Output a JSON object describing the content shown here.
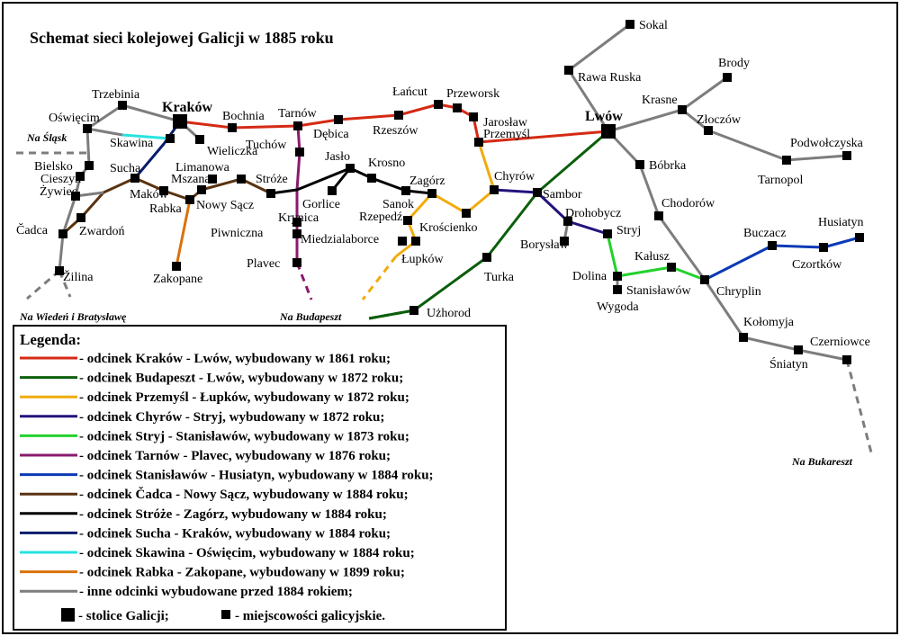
{
  "title": "Schemat sieci kolejowej Galicji w 1885 roku",
  "colors": {
    "krakow_lwow": "#d42a14",
    "budapeszt_lwow": "#0b5e0b",
    "przemysl_lupkow": "#f0ac0e",
    "chyrow_stryj": "#25137c",
    "stryj_stanislawow": "#22d12b",
    "tarnow_plavec": "#8a1a6c",
    "stanislawow_husiatyn": "#0b3ab5",
    "cadca_nowysacz": "#5a3310",
    "stroze_zagorz": "#000000",
    "sucha_krakow": "#081c6a",
    "skawina_oswiecim": "#27e3e0",
    "rabka_zakopane": "#d8720b",
    "other": "#7d7d7d"
  },
  "towns": [
    {
      "id": "krakow",
      "label": "Kraków",
      "capital": true
    },
    {
      "id": "lwow",
      "label": "Lwów",
      "capital": true
    },
    {
      "id": "sokal",
      "label": "Sokal"
    },
    {
      "id": "rawa",
      "label": "Rawa Ruska"
    },
    {
      "id": "brody",
      "label": "Brody"
    },
    {
      "id": "krasne",
      "label": "Krasne"
    },
    {
      "id": "zloczow",
      "label": "Złoczów"
    },
    {
      "id": "podwol",
      "label": "Podwołczyska"
    },
    {
      "id": "tarnopol",
      "label": "Tarnopol"
    },
    {
      "id": "bobrka",
      "label": "Bóbrka"
    },
    {
      "id": "chodorow",
      "label": "Chodorów"
    },
    {
      "id": "buczacz",
      "label": "Buczacz"
    },
    {
      "id": "husiatyn",
      "label": "Husiatyn"
    },
    {
      "id": "czortkow",
      "label": "Czortków"
    },
    {
      "id": "chryplin",
      "label": "Chryplin"
    },
    {
      "id": "kolomyja",
      "label": "Kołomyja"
    },
    {
      "id": "sniatyn",
      "label": "Śniatyn"
    },
    {
      "id": "czerniowce",
      "label": "Czerniowce"
    },
    {
      "id": "trzebinia",
      "label": "Trzebinia"
    },
    {
      "id": "oswiecim",
      "label": "Oświęcim"
    },
    {
      "id": "skawina",
      "label": "Skawina"
    },
    {
      "id": "bochnia",
      "label": "Bochnia"
    },
    {
      "id": "tarnow",
      "label": "Tarnów"
    },
    {
      "id": "debica",
      "label": "Dębica"
    },
    {
      "id": "rzeszow",
      "label": "Rzeszów"
    },
    {
      "id": "lancut",
      "label": "Łańcut"
    },
    {
      "id": "przeworsk",
      "label": "Przeworsk"
    },
    {
      "id": "jaroslaw",
      "label": "Jarosław"
    },
    {
      "id": "przemysl",
      "label": "Przemyśl"
    },
    {
      "id": "wieliczka",
      "label": "Wieliczka"
    },
    {
      "id": "tuchow",
      "label": "Tuchów"
    },
    {
      "id": "bielsko",
      "label": "Bielsko"
    },
    {
      "id": "cieszyn",
      "label": "Cieszyn"
    },
    {
      "id": "zywiec",
      "label": "Żywiec"
    },
    {
      "id": "sucha",
      "label": "Sucha"
    },
    {
      "id": "makow",
      "label": "Maków"
    },
    {
      "id": "limanowa",
      "label": "Limanowa"
    },
    {
      "id": "mszana",
      "label": "Mszana"
    },
    {
      "id": "rabka",
      "label": "Rabka"
    },
    {
      "id": "nowysacz",
      "label": "Nowy Sącz"
    },
    {
      "id": "stroze",
      "label": "Stróże"
    },
    {
      "id": "jaslo",
      "label": "Jasło"
    },
    {
      "id": "krosno",
      "label": "Krosno"
    },
    {
      "id": "gorlice",
      "label": "Gorlice"
    },
    {
      "id": "zagorz",
      "label": "Zagórz"
    },
    {
      "id": "sanok",
      "label": "Sanok"
    },
    {
      "id": "chyrow",
      "label": "Chyrów"
    },
    {
      "id": "sambor",
      "label": "Sambor"
    },
    {
      "id": "drohobycz",
      "label": "Drohobycz"
    },
    {
      "id": "stryj",
      "label": "Stryj"
    },
    {
      "id": "boryslaw",
      "label": "Borysław"
    },
    {
      "id": "kalusz",
      "label": "Kałusz"
    },
    {
      "id": "dolina",
      "label": "Dolina"
    },
    {
      "id": "stanislawow",
      "label": "Stanisławów"
    },
    {
      "id": "wygoda",
      "label": "Wygoda"
    },
    {
      "id": "rzepedz",
      "label": "Rzepedź"
    },
    {
      "id": "kroscienko",
      "label": "Krościenko"
    },
    {
      "id": "lupkow",
      "label": "Łupków"
    },
    {
      "id": "miedzilaborce",
      "label": "Miedzialaborce"
    },
    {
      "id": "krynica",
      "label": "Krynica"
    },
    {
      "id": "piwniczna",
      "label": "Piwniczna"
    },
    {
      "id": "plavec",
      "label": "Plavec"
    },
    {
      "id": "cadca",
      "label": "Čadca"
    },
    {
      "id": "zwardon",
      "label": "Zwardoń"
    },
    {
      "id": "zilina",
      "label": "Žilina"
    },
    {
      "id": "zakopane",
      "label": "Zakopane"
    },
    {
      "id": "turka",
      "label": "Turka"
    },
    {
      "id": "uzhorod",
      "label": "Użhorod"
    }
  ],
  "directions": [
    {
      "id": "slask",
      "label": "Na Śląsk"
    },
    {
      "id": "wieden",
      "label": "Na Wiedeń i Bratysławę"
    },
    {
      "id": "budapeszt",
      "label": "Na Budapeszt"
    },
    {
      "id": "bukareszt",
      "label": "Na Bukareszt"
    }
  ],
  "legend": {
    "title": "Legenda:",
    "entries": [
      {
        "color": "krakow_lwow",
        "text": "- odcinek Kraków - Lwów, wybudowany w 1861 roku;"
      },
      {
        "color": "budapeszt_lwow",
        "text": "- odcinek Budapeszt - Lwów, wybudowany w 1872 roku;"
      },
      {
        "color": "przemysl_lupkow",
        "text": "- odcinek Przemyśl - Łupków, wybudowany w 1872 roku;"
      },
      {
        "color": "chyrow_stryj",
        "text": "- odcinek Chyrów - Stryj, wybudowany w 1872 roku;"
      },
      {
        "color": "stryj_stanislawow",
        "text": "- odcinek Stryj - Stanisławów, wybudowany w 1873 roku;"
      },
      {
        "color": "tarnow_plavec",
        "text": "- odcinek Tarnów - Plavec, wybudowany w 1876 roku;"
      },
      {
        "color": "stanislawow_husiatyn",
        "text": "- odcinek Stanisławów - Husiatyn, wybudowany w 1884 roku;"
      },
      {
        "color": "cadca_nowysacz",
        "text": "- odcinek Čadca - Nowy Sącz, wybudowany w 1884 roku;"
      },
      {
        "color": "stroze_zagorz",
        "text": "- odcinek Stróże - Zagórz, wybudowany w 1884 roku;"
      },
      {
        "color": "sucha_krakow",
        "text": "- odcinek Sucha - Kraków, wybudowany w 1884 roku;"
      },
      {
        "color": "skawina_oswiecim",
        "text": "- odcinek Skawina - Oświęcim, wybudowany w 1884 roku;"
      },
      {
        "color": "rabka_zakopane",
        "text": "- odcinek Rabka - Zakopane, wybudowany w 1899 roku;"
      },
      {
        "color": "other",
        "text": "- inne odcinki wybudowane przed 1884 rokiem;"
      }
    ],
    "capital_text": "- stolice Galicji;",
    "town_text": "- miejscowości galicyjskie."
  }
}
